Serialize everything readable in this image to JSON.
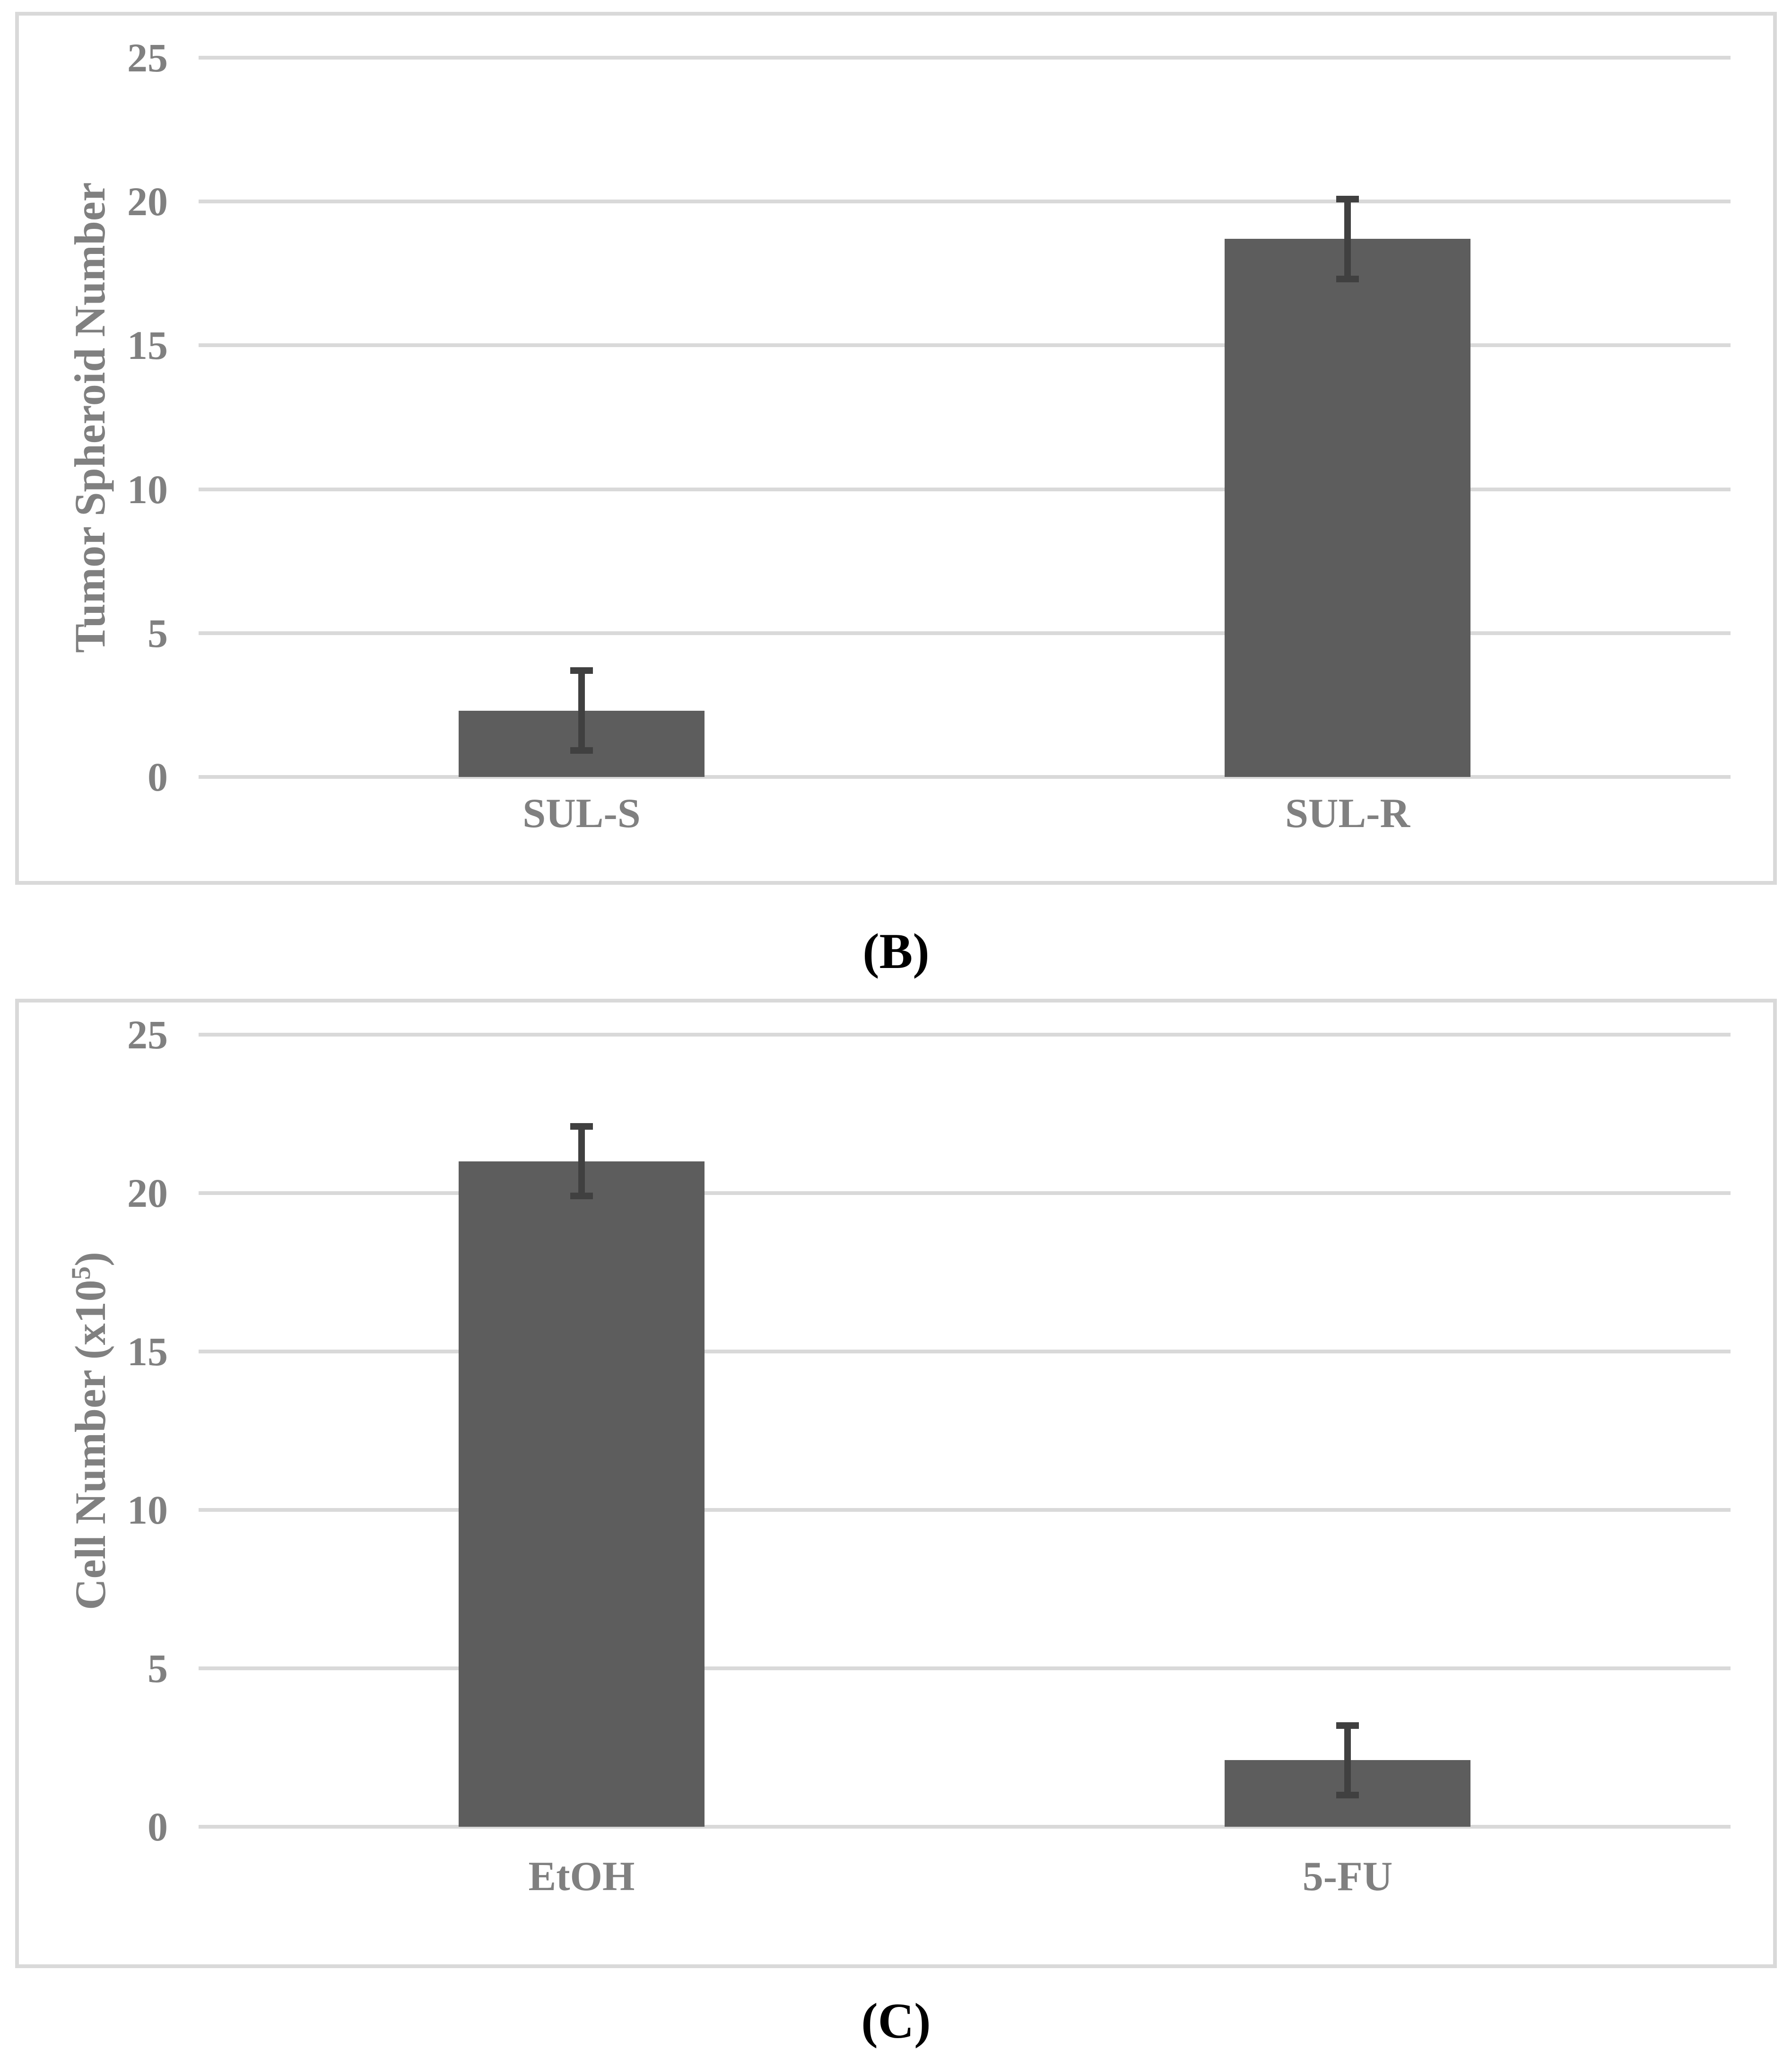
{
  "figure": {
    "background": "#ffffff",
    "panel_letter_b": "(B)",
    "panel_letter_c": "(C)"
  },
  "style": {
    "page_bg": "#ffffff",
    "bar_color": "#5d5d5d",
    "error_color": "#404040",
    "grid_color": "#d9d9d9",
    "frame_color": "#d9d9d9",
    "axis_text_color": "#808080",
    "letter_color": "#000000"
  },
  "chart_data": [
    {
      "id": "B",
      "type": "bar",
      "title": "",
      "ylabel": "Tumor Spheroid Number",
      "ylabel_segments": [
        {
          "text": "Tumor Spheroid Number",
          "sup": false
        }
      ],
      "categories": [
        "SUL-S",
        "SUL-R"
      ],
      "values": [
        2.3,
        18.7
      ],
      "errors": [
        1.5,
        1.5
      ],
      "ylim": [
        0,
        25
      ],
      "yticks": [
        0,
        5,
        10,
        15,
        20,
        25
      ],
      "grid": true,
      "legend": false
    },
    {
      "id": "C",
      "type": "bar",
      "title": "",
      "ylabel": "Cell Number (x10⁵)",
      "ylabel_segments": [
        {
          "text": "Cell Number (x10",
          "sup": false
        },
        {
          "text": "5",
          "sup": true
        },
        {
          "text": ")",
          "sup": false
        }
      ],
      "categories": [
        "EtOH",
        "5-FU"
      ],
      "values": [
        21.0,
        2.1
      ],
      "errors": [
        1.2,
        1.2
      ],
      "ylim": [
        0,
        25
      ],
      "yticks": [
        0,
        5,
        10,
        15,
        20,
        25
      ],
      "grid": true,
      "legend": false
    }
  ]
}
